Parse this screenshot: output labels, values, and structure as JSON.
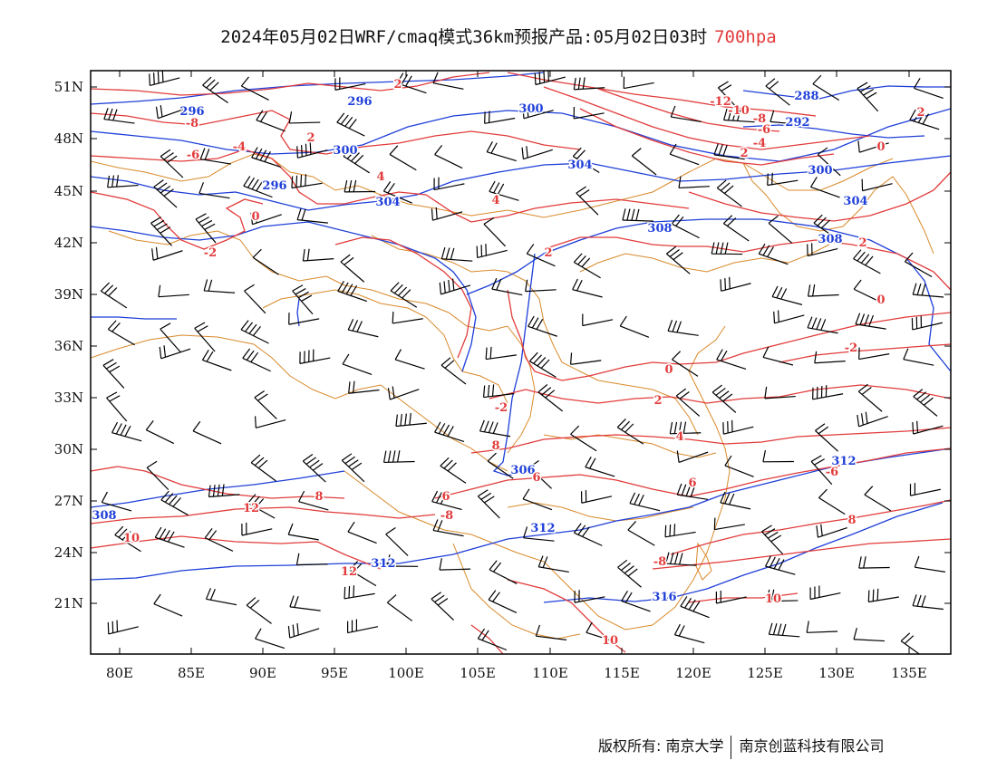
{
  "title": {
    "main": "2024年05月02日WRF/cmaq模式36km预报产品:05月02日03时",
    "level": "700hpa",
    "level_color": "#e23b3b"
  },
  "colors": {
    "temperature": "#e23b3b",
    "height": "#1f3fd8",
    "boundary": "#d98a2b",
    "barb": "#000000"
  },
  "axes": {
    "lon_ticks": [
      "80E",
      "85E",
      "90E",
      "95E",
      "100E",
      "105E",
      "110E",
      "115E",
      "120E",
      "125E",
      "130E",
      "135E"
    ],
    "lat_ticks": [
      "51N",
      "48N",
      "45N",
      "42N",
      "39N",
      "36N",
      "33N",
      "30N",
      "27N",
      "24N",
      "21N"
    ]
  },
  "height_labels": [
    "296",
    "300",
    "304",
    "308",
    "312",
    "296",
    "300",
    "304",
    "308",
    "312",
    "296",
    "292",
    "288",
    "300",
    "304",
    "308",
    "306",
    "312",
    "316"
  ],
  "temperature_labels": [
    "2",
    "-8",
    "-4",
    "2",
    "4",
    "-6",
    "0",
    "-2",
    "4",
    "2",
    "-12",
    "-10",
    "-8",
    "-6",
    "-4",
    "2",
    "0",
    "2",
    "0",
    "-2",
    "0",
    "2",
    "4",
    "6",
    "8",
    "10",
    "12",
    "6",
    "8",
    "10",
    "12",
    "-8",
    "-6",
    "10",
    "-8",
    "6",
    "8",
    "2",
    "-2"
  ],
  "credit": {
    "owner": "版权所有: 南京大学",
    "company": "南京创蓝科技有限公司"
  }
}
